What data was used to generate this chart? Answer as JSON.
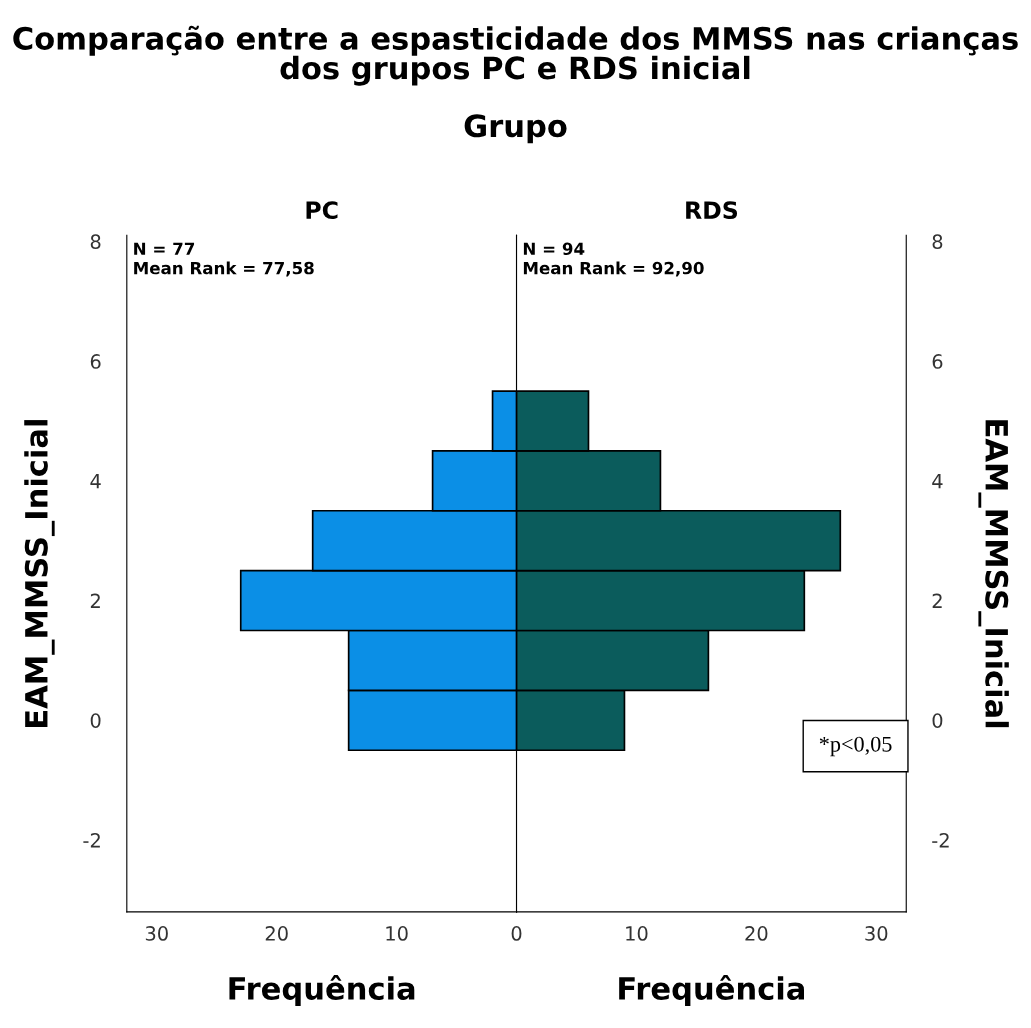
{
  "chart_data": [
    {
      "type": "histogram",
      "orientation": "horizontal",
      "title": "Comparação entre a espasticidade dos MMSS nas crianças dos grupos PC e RDS inicial",
      "subtitle": "Grupo",
      "xlabel": "Frequência",
      "ylabel": "EAM_MMSS_Inicial",
      "bins": [
        -0.5,
        0.5,
        1.5,
        2.5,
        3.5,
        4.5,
        5.5
      ],
      "series": [
        {
          "name": "PC",
          "color": "#0b8fe6",
          "values": [
            14,
            14,
            23,
            17,
            7,
            2
          ]
        }
      ],
      "xlim": [
        32.5,
        0
      ],
      "xticks": [
        30,
        20,
        10,
        0
      ],
      "ylim": [
        -3.2,
        8.1
      ],
      "yticks": [
        -2,
        0,
        2,
        4,
        6,
        8
      ],
      "grid": false,
      "annotations": [
        "N = 77",
        "Mean Rank = 77,58"
      ]
    },
    {
      "type": "histogram",
      "orientation": "horizontal",
      "xlabel": "Frequência",
      "ylabel": "EAM_MMSS_Inicial",
      "bins": [
        -0.5,
        0.5,
        1.5,
        2.5,
        3.5,
        4.5,
        5.5
      ],
      "series": [
        {
          "name": "RDS",
          "color": "#0b5c5c",
          "values": [
            9,
            16,
            24,
            27,
            12,
            6
          ]
        }
      ],
      "xlim": [
        0,
        32.5
      ],
      "xticks": [
        10,
        20,
        30
      ],
      "ylim": [
        -3.2,
        8.1
      ],
      "yticks": [
        -2,
        0,
        2,
        4,
        6,
        8
      ],
      "grid": false,
      "annotations": [
        "N = 94",
        "Mean Rank = 92,90",
        "*p<0,05"
      ]
    }
  ]
}
